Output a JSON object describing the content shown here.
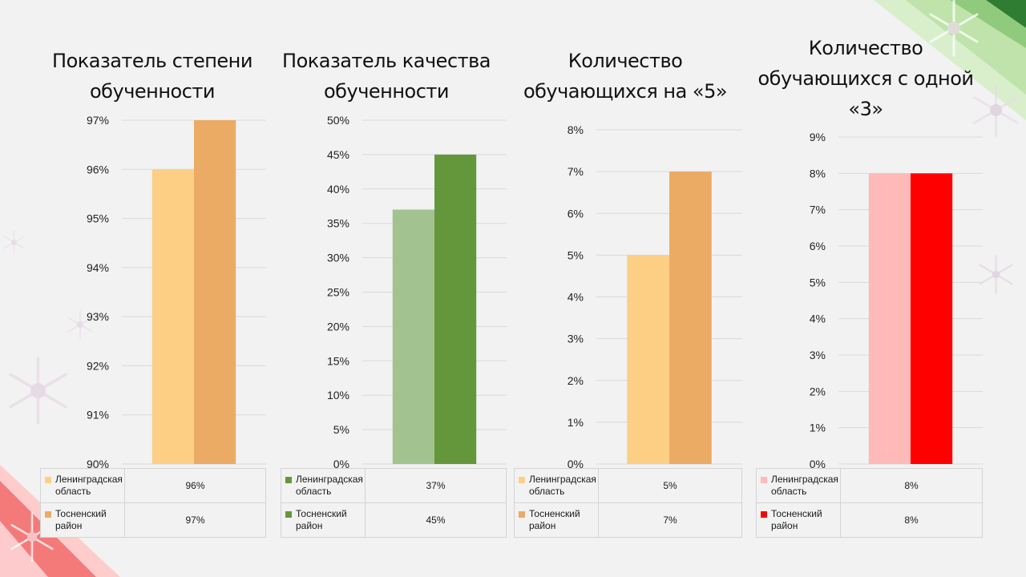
{
  "chart_data": [
    {
      "type": "bar",
      "title": "Показатель степени\nобученности",
      "categories": [
        "Ленинградская область",
        "Тосненский район"
      ],
      "values": [
        96,
        97
      ],
      "ylim": [
        90,
        97
      ],
      "yticks": [
        "90%",
        "91%",
        "92%",
        "93%",
        "94%",
        "95%",
        "96%",
        "97%"
      ],
      "value_labels": [
        "96%",
        "97%"
      ],
      "colors": [
        "#fdcf85",
        "#ebab65"
      ],
      "grid": true
    },
    {
      "type": "bar",
      "title": "Показатель качества\nобученности",
      "categories": [
        "Ленинградская область",
        "Тосненский район"
      ],
      "values": [
        37,
        45
      ],
      "ylim": [
        0,
        50
      ],
      "yticks": [
        "0%",
        "5%",
        "10%",
        "15%",
        "20%",
        "25%",
        "30%",
        "35%",
        "40%",
        "45%",
        "50%"
      ],
      "value_labels": [
        "37%",
        "45%"
      ],
      "colors": [
        "#a2c38f",
        "#64973c"
      ],
      "grid": true
    },
    {
      "type": "bar",
      "title": "Количество\nобучающихся на «5»",
      "categories": [
        "Ленинградская область",
        "Тосненский район"
      ],
      "values": [
        5,
        7
      ],
      "ylim": [
        0,
        8
      ],
      "yticks": [
        "0%",
        "1%",
        "2%",
        "3%",
        "4%",
        "5%",
        "6%",
        "7%",
        "8%"
      ],
      "value_labels": [
        "5%",
        "7%"
      ],
      "colors": [
        "#fdcf85",
        "#ebab65"
      ],
      "grid": true
    },
    {
      "type": "bar",
      "title": "Количество\nобучающихся с одной\n«3»",
      "categories": [
        "Ленинградская область",
        "Тосненский район"
      ],
      "values": [
        8,
        8
      ],
      "ylim": [
        0,
        9
      ],
      "yticks": [
        "0%",
        "1%",
        "2%",
        "3%",
        "4%",
        "5%",
        "6%",
        "7%",
        "8%",
        "9%"
      ],
      "value_labels": [
        "8%",
        "8%"
      ],
      "colors": [
        "#ffb9b9",
        "#ff0000"
      ],
      "grid": true
    }
  ],
  "legend_labels": {
    "region": "Ленинградская\nобласть",
    "district": "Тосненский\nрайон"
  },
  "decoration": {
    "theme": "winter snowflakes",
    "icon": "snowflake-icon",
    "corner_colors": [
      "#c9e6b8",
      "#2f7d32",
      "#f25a5a",
      "#ffb3b3"
    ]
  }
}
